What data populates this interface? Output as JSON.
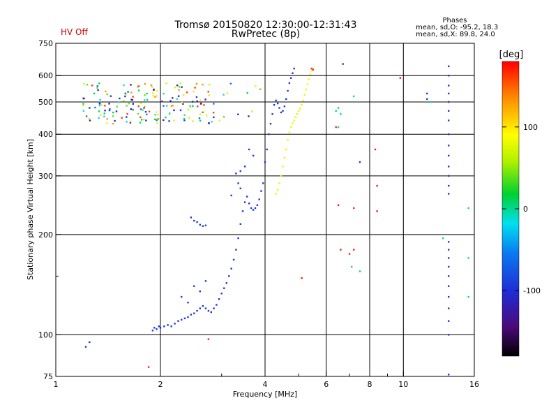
{
  "chart_data": {
    "type": "scatter",
    "title": "Tromsø 20150820 12:30:00-12:31:43",
    "subtitle": "RwPretec (8p)",
    "status_label": "HV Off",
    "status_color": "#cc0000",
    "phase_stats": {
      "heading": "Phases",
      "line_o": "mean, sd,O: -95.2, 18.3",
      "line_x": "mean, sd,X:  89.8, 24.0"
    },
    "xlabel": "Frequency [MHz]",
    "ylabel": "Stationary phase Virtual Height [km]",
    "x_scale": "log",
    "y_scale": "log",
    "xlim": [
      1,
      16
    ],
    "ylim": [
      75,
      750
    ],
    "x_ticks": [
      1,
      2,
      4,
      6,
      8,
      10,
      16
    ],
    "x_ticks_minor": [
      3,
      5,
      7,
      9
    ],
    "y_ticks": [
      75,
      100,
      200,
      300,
      400,
      500,
      600,
      750
    ],
    "y_ticks_minor": [
      150
    ],
    "grid": true,
    "colorbar": {
      "label": "[deg]",
      "min": -180,
      "max": 180,
      "ticks": [
        -100,
        0,
        100
      ],
      "palette": "rainbow (black-purple-blue-cyan-green-yellow-red)"
    },
    "series": [
      {
        "color_deg": -95,
        "points": [
          [
            1.9,
            103
          ],
          [
            1.92,
            105
          ],
          [
            1.95,
            104
          ],
          [
            1.98,
            106
          ],
          [
            2.0,
            105
          ],
          [
            2.05,
            106
          ],
          [
            2.1,
            107
          ],
          [
            2.15,
            106
          ],
          [
            2.2,
            108
          ],
          [
            2.25,
            110
          ],
          [
            2.3,
            111
          ],
          [
            2.35,
            112
          ],
          [
            2.4,
            113
          ],
          [
            2.45,
            115
          ],
          [
            2.5,
            116
          ],
          [
            2.55,
            118
          ],
          [
            2.6,
            120
          ],
          [
            2.65,
            122
          ],
          [
            2.7,
            120
          ],
          [
            2.75,
            118
          ],
          [
            2.8,
            117
          ],
          [
            2.85,
            120
          ],
          [
            2.9,
            123
          ],
          [
            2.95,
            128
          ],
          [
            3.0,
            133
          ],
          [
            3.05,
            138
          ],
          [
            3.1,
            143
          ],
          [
            3.15,
            150
          ],
          [
            3.2,
            158
          ],
          [
            3.25,
            168
          ],
          [
            3.3,
            180
          ],
          [
            3.35,
            195
          ],
          [
            3.4,
            215
          ],
          [
            3.45,
            235
          ],
          [
            3.5,
            250
          ],
          [
            3.55,
            260
          ],
          [
            3.6,
            248
          ],
          [
            3.65,
            240
          ],
          [
            3.7,
            237
          ],
          [
            3.75,
            240
          ],
          [
            3.8,
            245
          ],
          [
            3.85,
            255
          ],
          [
            3.9,
            270
          ],
          [
            3.95,
            285
          ],
          [
            4.0,
            330
          ],
          [
            4.05,
            360
          ],
          [
            4.1,
            400
          ],
          [
            4.15,
            430
          ],
          [
            4.2,
            460
          ],
          [
            4.25,
            490
          ],
          [
            4.3,
            505
          ],
          [
            4.35,
            495
          ],
          [
            4.4,
            480
          ],
          [
            4.45,
            465
          ],
          [
            4.5,
            470
          ],
          [
            4.55,
            485
          ],
          [
            4.6,
            510
          ],
          [
            4.65,
            540
          ],
          [
            4.7,
            570
          ],
          [
            4.75,
            590
          ],
          [
            4.8,
            610
          ],
          [
            4.85,
            630
          ],
          [
            2.5,
            220
          ],
          [
            2.55,
            218
          ],
          [
            2.6,
            214
          ],
          [
            2.65,
            212
          ],
          [
            2.7,
            213
          ],
          [
            2.45,
            225
          ],
          [
            2.3,
            130
          ],
          [
            2.4,
            125
          ],
          [
            2.5,
            140
          ],
          [
            2.7,
            145
          ],
          [
            2.6,
            135
          ],
          [
            3.3,
            305
          ],
          [
            3.4,
            310
          ],
          [
            3.5,
            320
          ],
          [
            3.6,
            360
          ],
          [
            3.7,
            345
          ],
          [
            3.2,
            262
          ],
          [
            3.35,
            285
          ],
          [
            3.4,
            275
          ],
          [
            1.25,
            95
          ],
          [
            1.22,
            92
          ],
          [
            13.5,
            640
          ],
          [
            13.5,
            600
          ],
          [
            13.5,
            560
          ],
          [
            13.5,
            530
          ],
          [
            13.5,
            500
          ],
          [
            13.5,
            470
          ],
          [
            13.5,
            440
          ],
          [
            13.5,
            400
          ],
          [
            13.5,
            370
          ],
          [
            13.5,
            345
          ],
          [
            13.5,
            320
          ],
          [
            13.5,
            300
          ],
          [
            13.5,
            280
          ],
          [
            13.5,
            265
          ],
          [
            13.5,
            190
          ],
          [
            13.5,
            180
          ],
          [
            13.5,
            170
          ],
          [
            13.5,
            160
          ],
          [
            13.5,
            150
          ],
          [
            13.5,
            140
          ],
          [
            13.5,
            130
          ],
          [
            13.5,
            120
          ],
          [
            13.5,
            110
          ],
          [
            13.5,
            100
          ],
          [
            13.5,
            76
          ],
          [
            6.7,
            650
          ],
          [
            7.5,
            330
          ],
          [
            11.7,
            530
          ],
          [
            11.7,
            510
          ]
        ]
      },
      {
        "color_deg": 80,
        "points": [
          [
            4.3,
            265
          ],
          [
            4.35,
            272
          ],
          [
            4.4,
            285
          ],
          [
            4.45,
            300
          ],
          [
            4.5,
            320
          ],
          [
            4.55,
            340
          ],
          [
            4.6,
            360
          ],
          [
            4.65,
            385
          ],
          [
            4.7,
            405
          ],
          [
            4.75,
            420
          ],
          [
            4.8,
            432
          ],
          [
            4.85,
            440
          ],
          [
            4.9,
            450
          ],
          [
            4.95,
            460
          ],
          [
            5.0,
            470
          ],
          [
            5.05,
            478
          ],
          [
            5.1,
            490
          ],
          [
            5.15,
            505
          ],
          [
            5.2,
            525
          ],
          [
            5.25,
            545
          ],
          [
            5.3,
            565
          ],
          [
            5.35,
            585
          ],
          [
            5.4,
            605
          ],
          [
            5.45,
            620
          ]
        ]
      },
      {
        "color_deg": 170,
        "points": [
          [
            5.45,
            630
          ],
          [
            5.5,
            625
          ],
          [
            6.6,
            180
          ],
          [
            7.2,
            240
          ],
          [
            7.2,
            180
          ],
          [
            8.4,
            235
          ],
          [
            8.4,
            280
          ],
          [
            5.1,
            148
          ],
          [
            2.75,
            97
          ],
          [
            1.85,
            80
          ],
          [
            6.5,
            245
          ],
          [
            7.0,
            175
          ],
          [
            9.8,
            590
          ],
          [
            8.3,
            360
          ],
          [
            6.4,
            420
          ]
        ]
      },
      {
        "color_deg": 0,
        "points": [
          [
            6.4,
            470
          ],
          [
            6.5,
            480
          ],
          [
            6.6,
            460
          ],
          [
            7.2,
            520
          ],
          [
            12.0,
            500
          ],
          [
            6.5,
            420
          ],
          [
            7.1,
            160
          ],
          [
            15.4,
            240
          ],
          [
            15.4,
            170
          ],
          [
            15.4,
            130
          ],
          [
            13.0,
            195
          ],
          [
            7.5,
            155
          ]
        ]
      }
    ],
    "scatter_cluster": {
      "note": "dense multicolour cluster",
      "x_range": [
        1.2,
        3.9
      ],
      "y_range": [
        430,
        570
      ]
    }
  }
}
